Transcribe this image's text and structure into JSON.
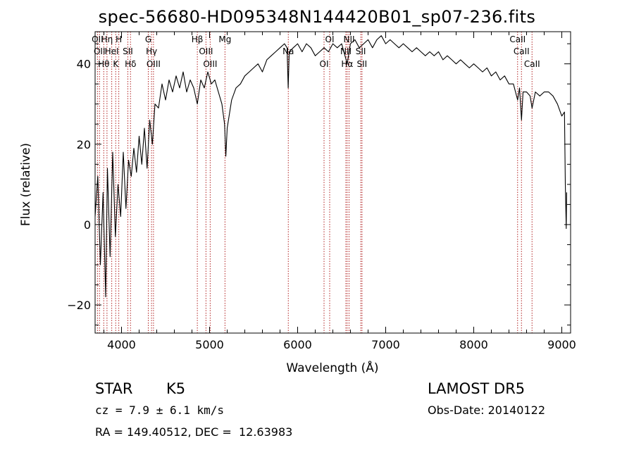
{
  "chart_data": {
    "type": "line",
    "title": "spec-56680-HD095348N144420B01_sp07-236.fits",
    "xlabel": "Wavelength (Å)",
    "ylabel": "Flux (relative)",
    "xlim": [
      3700,
      9100
    ],
    "ylim": [
      -27,
      48
    ],
    "x_ticks": [
      4000,
      5000,
      6000,
      7000,
      8000,
      9000
    ],
    "y_ticks": [
      -20,
      0,
      20,
      40
    ],
    "grid": false,
    "series": [
      {
        "points": [
          [
            3700,
            2
          ],
          [
            3730,
            12
          ],
          [
            3760,
            -10
          ],
          [
            3790,
            8
          ],
          [
            3820,
            -18
          ],
          [
            3840,
            14
          ],
          [
            3870,
            -8
          ],
          [
            3900,
            18
          ],
          [
            3930,
            -3
          ],
          [
            3960,
            10
          ],
          [
            3990,
            2
          ],
          [
            4020,
            18
          ],
          [
            4050,
            4
          ],
          [
            4080,
            16
          ],
          [
            4110,
            12
          ],
          [
            4140,
            19
          ],
          [
            4170,
            13
          ],
          [
            4200,
            22
          ],
          [
            4230,
            15
          ],
          [
            4260,
            24
          ],
          [
            4290,
            14
          ],
          [
            4320,
            26
          ],
          [
            4350,
            20
          ],
          [
            4380,
            30
          ],
          [
            4420,
            29
          ],
          [
            4460,
            35
          ],
          [
            4500,
            31
          ],
          [
            4540,
            36
          ],
          [
            4580,
            33
          ],
          [
            4620,
            37
          ],
          [
            4660,
            34
          ],
          [
            4700,
            38
          ],
          [
            4740,
            33
          ],
          [
            4780,
            36
          ],
          [
            4820,
            34
          ],
          [
            4861,
            30
          ],
          [
            4900,
            36
          ],
          [
            4940,
            34
          ],
          [
            4980,
            38
          ],
          [
            5020,
            35
          ],
          [
            5060,
            36
          ],
          [
            5100,
            33
          ],
          [
            5140,
            30
          ],
          [
            5170,
            25
          ],
          [
            5185,
            17
          ],
          [
            5200,
            24
          ],
          [
            5250,
            31
          ],
          [
            5300,
            34
          ],
          [
            5350,
            35
          ],
          [
            5400,
            37
          ],
          [
            5450,
            38
          ],
          [
            5500,
            39
          ],
          [
            5550,
            40
          ],
          [
            5600,
            38
          ],
          [
            5650,
            41
          ],
          [
            5700,
            42
          ],
          [
            5750,
            43
          ],
          [
            5800,
            44
          ],
          [
            5850,
            45
          ],
          [
            5880,
            44
          ],
          [
            5893,
            34
          ],
          [
            5905,
            43
          ],
          [
            5950,
            44
          ],
          [
            6000,
            45
          ],
          [
            6050,
            43
          ],
          [
            6100,
            45
          ],
          [
            6150,
            44
          ],
          [
            6200,
            42
          ],
          [
            6250,
            43
          ],
          [
            6300,
            44
          ],
          [
            6350,
            43
          ],
          [
            6400,
            45
          ],
          [
            6450,
            44
          ],
          [
            6500,
            45
          ],
          [
            6563,
            40
          ],
          [
            6600,
            45
          ],
          [
            6650,
            46
          ],
          [
            6700,
            44
          ],
          [
            6750,
            45
          ],
          [
            6800,
            46
          ],
          [
            6850,
            44
          ],
          [
            6900,
            46
          ],
          [
            6950,
            47
          ],
          [
            7000,
            45
          ],
          [
            7050,
            46
          ],
          [
            7100,
            45
          ],
          [
            7150,
            44
          ],
          [
            7200,
            45
          ],
          [
            7250,
            44
          ],
          [
            7300,
            43
          ],
          [
            7350,
            44
          ],
          [
            7400,
            43
          ],
          [
            7450,
            42
          ],
          [
            7500,
            43
          ],
          [
            7550,
            42
          ],
          [
            7600,
            43
          ],
          [
            7650,
            41
          ],
          [
            7700,
            42
          ],
          [
            7750,
            41
          ],
          [
            7800,
            40
          ],
          [
            7850,
            41
          ],
          [
            7900,
            40
          ],
          [
            7950,
            39
          ],
          [
            8000,
            40
          ],
          [
            8050,
            39
          ],
          [
            8100,
            38
          ],
          [
            8150,
            39
          ],
          [
            8200,
            37
          ],
          [
            8250,
            38
          ],
          [
            8300,
            36
          ],
          [
            8350,
            37
          ],
          [
            8400,
            35
          ],
          [
            8450,
            35
          ],
          [
            8498,
            31
          ],
          [
            8520,
            34
          ],
          [
            8542,
            26
          ],
          [
            8560,
            33
          ],
          [
            8600,
            33
          ],
          [
            8640,
            32
          ],
          [
            8662,
            29
          ],
          [
            8700,
            33
          ],
          [
            8750,
            32
          ],
          [
            8800,
            33
          ],
          [
            8850,
            33
          ],
          [
            8900,
            32
          ],
          [
            8950,
            30
          ],
          [
            9000,
            27
          ],
          [
            9030,
            28
          ],
          [
            9040,
            10
          ],
          [
            9050,
            -1
          ],
          [
            9055,
            8
          ]
        ]
      }
    ],
    "lines": [
      {
        "x": 3727,
        "labels": [
          "OII"
        ]
      },
      {
        "x": 3750,
        "labels": [
          "OII"
        ]
      },
      {
        "x": 3798,
        "labels": [
          "Hθ"
        ]
      },
      {
        "x": 3835,
        "labels": [
          "Hη"
        ]
      },
      {
        "x": 3889,
        "labels": [
          "HeI"
        ]
      },
      {
        "x": 3934,
        "labels": [
          "K"
        ]
      },
      {
        "x": 3969,
        "labels": [
          "H"
        ]
      },
      {
        "x": 4072,
        "labels": [
          "SII"
        ]
      },
      {
        "x": 4102,
        "labels": [
          "Hδ"
        ]
      },
      {
        "x": 4304,
        "labels": [
          "G"
        ]
      },
      {
        "x": 4341,
        "labels": [
          "Hγ"
        ]
      },
      {
        "x": 4363,
        "labels": [
          "OIII"
        ]
      },
      {
        "x": 4861,
        "labels": [
          "Hβ"
        ]
      },
      {
        "x": 4959,
        "labels": [
          "OIII"
        ]
      },
      {
        "x": 5007,
        "labels": [
          "OIII"
        ]
      },
      {
        "x": 5175,
        "labels": [
          "Mg"
        ]
      },
      {
        "x": 5894,
        "labels": [
          "Na"
        ]
      },
      {
        "x": 6300,
        "labels": [
          "OI"
        ]
      },
      {
        "x": 6364,
        "labels": [
          "OI"
        ]
      },
      {
        "x": 6548,
        "labels": [
          "NII"
        ]
      },
      {
        "x": 6563,
        "labels": [
          "Hα"
        ]
      },
      {
        "x": 6584,
        "labels": [
          "NII"
        ]
      },
      {
        "x": 6717,
        "labels": [
          "SII"
        ]
      },
      {
        "x": 6731,
        "labels": [
          "SII"
        ]
      },
      {
        "x": 8498,
        "labels": [
          "CaII"
        ]
      },
      {
        "x": 8542,
        "labels": [
          "CaII"
        ]
      },
      {
        "x": 8662,
        "labels": [
          "CaII"
        ]
      }
    ],
    "annotations": {
      "class_label": "STAR",
      "subclass": "K5",
      "release": "LAMOST DR5",
      "redshift_line": "cz = 7.9 ± 6.1 km/s",
      "obs_date": "Obs-Date: 20140122",
      "coords": "RA = 149.40512, DEC =  12.63983"
    }
  }
}
